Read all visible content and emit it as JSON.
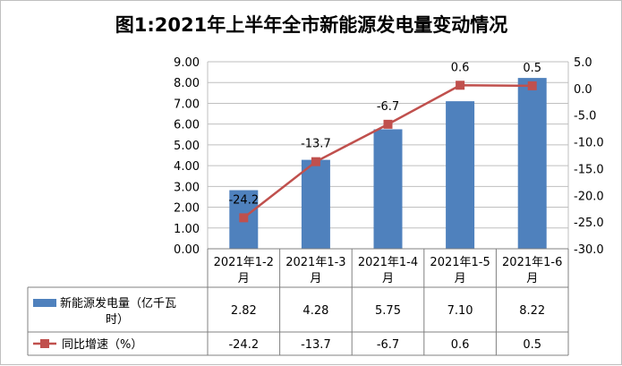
{
  "chart_data": {
    "type": "bar",
    "title": "图1:2021年上半年全市新能源发电量变动情况",
    "categories": [
      [
        "2021年1-2",
        "月"
      ],
      [
        "2021年1-3",
        "月"
      ],
      [
        "2021年1-4",
        "月"
      ],
      [
        "2021年1-5",
        "月"
      ],
      [
        "2021年1-6",
        "月"
      ]
    ],
    "series": [
      {
        "name": "新能源发电量（亿千瓦时）",
        "legend_lines": [
          "新能源发电量（亿千瓦",
          "时）"
        ],
        "type": "bar",
        "axis": "left",
        "color": "#4F81BD",
        "values": [
          2.82,
          4.28,
          5.75,
          7.1,
          8.22
        ],
        "value_labels": [
          "2.82",
          "4.28",
          "5.75",
          "7.10",
          "8.22"
        ]
      },
      {
        "name": "同比增速（%）",
        "legend_lines": [
          "同比增速（%）"
        ],
        "type": "line",
        "axis": "right",
        "color": "#C0504D",
        "values": [
          -24.2,
          -13.7,
          -6.7,
          0.6,
          0.5
        ],
        "value_labels": [
          "-24.2",
          "-13.7",
          "-6.7",
          "0.6",
          "0.5"
        ]
      }
    ],
    "y_left": {
      "min": 0,
      "max": 9,
      "step": 1,
      "tick_labels": [
        "0.00",
        "1.00",
        "2.00",
        "3.00",
        "4.00",
        "5.00",
        "6.00",
        "7.00",
        "8.00",
        "9.00"
      ]
    },
    "y_right": {
      "min": -30,
      "max": 5,
      "step": 5,
      "tick_labels": [
        "-30.0",
        "-25.0",
        "-20.0",
        "-15.0",
        "-10.0",
        "-5.0",
        "0.0",
        "5.0"
      ]
    },
    "gridlines": true,
    "data_table": true,
    "legend": "data-table"
  }
}
